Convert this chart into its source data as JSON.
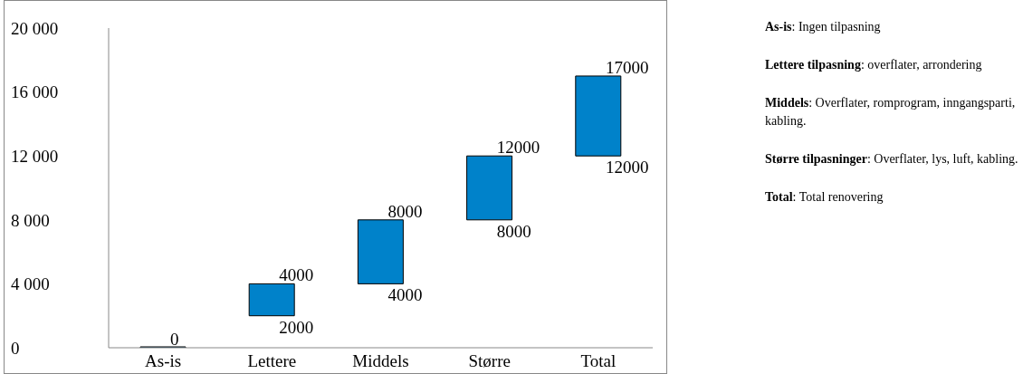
{
  "chart_data": {
    "type": "bar",
    "categories": [
      "As-is",
      "Lettere",
      "Middels",
      "Større",
      "Total"
    ],
    "values": [
      0,
      2000,
      4000,
      4000,
      5000
    ],
    "base": [
      0,
      2000,
      4000,
      8000,
      12000
    ],
    "color": "#0082ca",
    "ylim": [
      0,
      20000
    ],
    "yticks": [
      {
        "value": 0,
        "label": "0"
      },
      {
        "value": 4000,
        "label": "4 000"
      },
      {
        "value": 8000,
        "label": "8 000"
      },
      {
        "value": 12000,
        "label": "12 000"
      },
      {
        "value": 16000,
        "label": "16 000"
      },
      {
        "value": 20000,
        "label": "20 000"
      }
    ],
    "grid": false,
    "legend": false,
    "annotations": [
      {
        "text": "0",
        "x": "As-is",
        "y": 0
      },
      {
        "text": "4000",
        "x": "Lettere",
        "y": 4000
      },
      {
        "text": "2000",
        "x": "Lettere",
        "y": 2000
      },
      {
        "text": "8000",
        "x": "Middels",
        "y": 8000
      },
      {
        "text": "4000",
        "x": "Middels",
        "y": 4000
      },
      {
        "text": "12000",
        "x": "Større",
        "y": 12000
      },
      {
        "text": "8000",
        "x": "Større",
        "y": 8000
      },
      {
        "text": "17000",
        "x": "Total",
        "y": 17000
      },
      {
        "text": "12000",
        "x": "Total",
        "y": 12000
      },
      "As-is: Ingen tilpasning",
      "Lettere tilpasning: overflater, arrondering",
      "Middels: Overflater, romprogram, inngangsparti, kabling.",
      "Større tilpasninger: Overflater, lys, luft, kabling.",
      "Total: Total renovering"
    ]
  }
}
